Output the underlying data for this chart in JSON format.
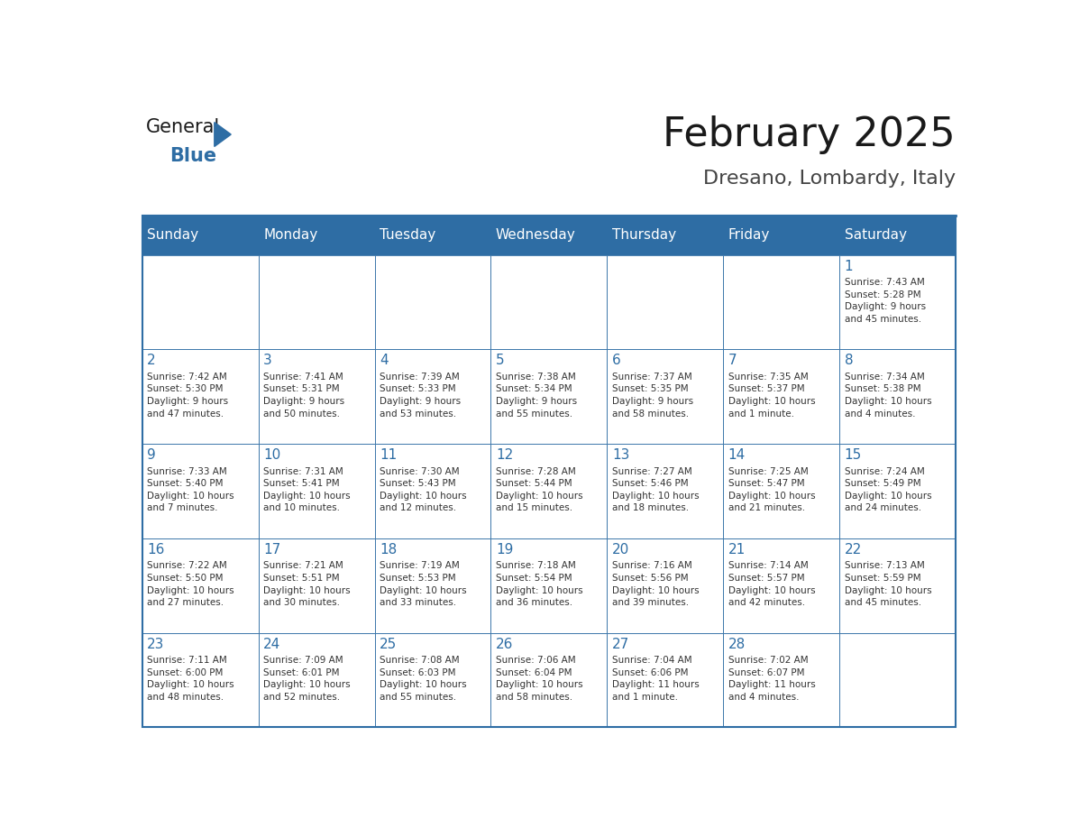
{
  "title": "February 2025",
  "subtitle": "Dresano, Lombardy, Italy",
  "header_bg": "#2E6DA4",
  "header_text_color": "#FFFFFF",
  "day_number_color": "#2E6DA4",
  "detail_text_color": "#333333",
  "border_color": "#2E6DA4",
  "days_of_week": [
    "Sunday",
    "Monday",
    "Tuesday",
    "Wednesday",
    "Thursday",
    "Friday",
    "Saturday"
  ],
  "weeks": [
    [
      {
        "day": null,
        "info": ""
      },
      {
        "day": null,
        "info": ""
      },
      {
        "day": null,
        "info": ""
      },
      {
        "day": null,
        "info": ""
      },
      {
        "day": null,
        "info": ""
      },
      {
        "day": null,
        "info": ""
      },
      {
        "day": 1,
        "info": "Sunrise: 7:43 AM\nSunset: 5:28 PM\nDaylight: 9 hours\nand 45 minutes."
      }
    ],
    [
      {
        "day": 2,
        "info": "Sunrise: 7:42 AM\nSunset: 5:30 PM\nDaylight: 9 hours\nand 47 minutes."
      },
      {
        "day": 3,
        "info": "Sunrise: 7:41 AM\nSunset: 5:31 PM\nDaylight: 9 hours\nand 50 minutes."
      },
      {
        "day": 4,
        "info": "Sunrise: 7:39 AM\nSunset: 5:33 PM\nDaylight: 9 hours\nand 53 minutes."
      },
      {
        "day": 5,
        "info": "Sunrise: 7:38 AM\nSunset: 5:34 PM\nDaylight: 9 hours\nand 55 minutes."
      },
      {
        "day": 6,
        "info": "Sunrise: 7:37 AM\nSunset: 5:35 PM\nDaylight: 9 hours\nand 58 minutes."
      },
      {
        "day": 7,
        "info": "Sunrise: 7:35 AM\nSunset: 5:37 PM\nDaylight: 10 hours\nand 1 minute."
      },
      {
        "day": 8,
        "info": "Sunrise: 7:34 AM\nSunset: 5:38 PM\nDaylight: 10 hours\nand 4 minutes."
      }
    ],
    [
      {
        "day": 9,
        "info": "Sunrise: 7:33 AM\nSunset: 5:40 PM\nDaylight: 10 hours\nand 7 minutes."
      },
      {
        "day": 10,
        "info": "Sunrise: 7:31 AM\nSunset: 5:41 PM\nDaylight: 10 hours\nand 10 minutes."
      },
      {
        "day": 11,
        "info": "Sunrise: 7:30 AM\nSunset: 5:43 PM\nDaylight: 10 hours\nand 12 minutes."
      },
      {
        "day": 12,
        "info": "Sunrise: 7:28 AM\nSunset: 5:44 PM\nDaylight: 10 hours\nand 15 minutes."
      },
      {
        "day": 13,
        "info": "Sunrise: 7:27 AM\nSunset: 5:46 PM\nDaylight: 10 hours\nand 18 minutes."
      },
      {
        "day": 14,
        "info": "Sunrise: 7:25 AM\nSunset: 5:47 PM\nDaylight: 10 hours\nand 21 minutes."
      },
      {
        "day": 15,
        "info": "Sunrise: 7:24 AM\nSunset: 5:49 PM\nDaylight: 10 hours\nand 24 minutes."
      }
    ],
    [
      {
        "day": 16,
        "info": "Sunrise: 7:22 AM\nSunset: 5:50 PM\nDaylight: 10 hours\nand 27 minutes."
      },
      {
        "day": 17,
        "info": "Sunrise: 7:21 AM\nSunset: 5:51 PM\nDaylight: 10 hours\nand 30 minutes."
      },
      {
        "day": 18,
        "info": "Sunrise: 7:19 AM\nSunset: 5:53 PM\nDaylight: 10 hours\nand 33 minutes."
      },
      {
        "day": 19,
        "info": "Sunrise: 7:18 AM\nSunset: 5:54 PM\nDaylight: 10 hours\nand 36 minutes."
      },
      {
        "day": 20,
        "info": "Sunrise: 7:16 AM\nSunset: 5:56 PM\nDaylight: 10 hours\nand 39 minutes."
      },
      {
        "day": 21,
        "info": "Sunrise: 7:14 AM\nSunset: 5:57 PM\nDaylight: 10 hours\nand 42 minutes."
      },
      {
        "day": 22,
        "info": "Sunrise: 7:13 AM\nSunset: 5:59 PM\nDaylight: 10 hours\nand 45 minutes."
      }
    ],
    [
      {
        "day": 23,
        "info": "Sunrise: 7:11 AM\nSunset: 6:00 PM\nDaylight: 10 hours\nand 48 minutes."
      },
      {
        "day": 24,
        "info": "Sunrise: 7:09 AM\nSunset: 6:01 PM\nDaylight: 10 hours\nand 52 minutes."
      },
      {
        "day": 25,
        "info": "Sunrise: 7:08 AM\nSunset: 6:03 PM\nDaylight: 10 hours\nand 55 minutes."
      },
      {
        "day": 26,
        "info": "Sunrise: 7:06 AM\nSunset: 6:04 PM\nDaylight: 10 hours\nand 58 minutes."
      },
      {
        "day": 27,
        "info": "Sunrise: 7:04 AM\nSunset: 6:06 PM\nDaylight: 11 hours\nand 1 minute."
      },
      {
        "day": 28,
        "info": "Sunrise: 7:02 AM\nSunset: 6:07 PM\nDaylight: 11 hours\nand 4 minutes."
      },
      {
        "day": null,
        "info": ""
      }
    ]
  ],
  "logo_text_general": "General",
  "logo_text_blue": "Blue",
  "logo_color_general": "#1a1a1a",
  "logo_color_blue": "#2E6DA4",
  "logo_triangle_color": "#2E6DA4"
}
